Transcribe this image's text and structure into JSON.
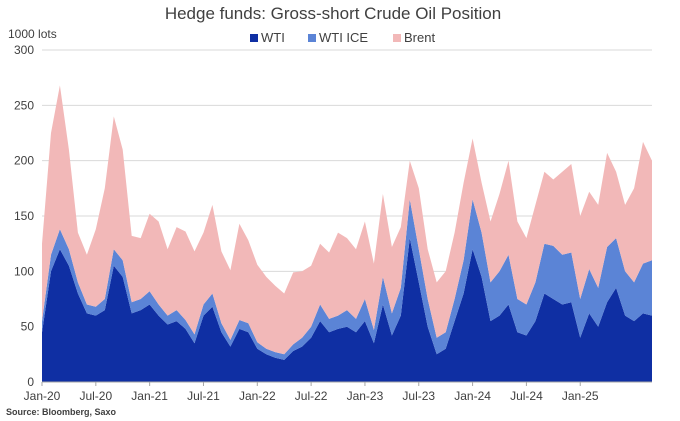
{
  "chart_data": {
    "type": "area",
    "stacked": true,
    "title": "Hedge funds: Gross-short Crude Oil Position",
    "ylabel": "1000 lots",
    "ylim": [
      0,
      300
    ],
    "yticks": [
      0,
      50,
      100,
      150,
      200,
      250,
      300
    ],
    "x_tick_labels": [
      "Jan-20",
      "Jul-20",
      "Jan-21",
      "Jul-21",
      "Jan-22",
      "Jul-22",
      "Jan-23",
      "Jul-23",
      "Jan-24",
      "Jul-24",
      "Jan-25"
    ],
    "x_start": "2020-01",
    "x_end": "2025-09",
    "grid": true,
    "legend_position": "top-center",
    "source": "Source: Bloomberg, Saxo",
    "colors": {
      "WTI": "#0f2fa3",
      "WTI ICE": "#5b84d6",
      "Brent": "#f2b8b8"
    },
    "x": [
      "2020-01",
      "2020-02",
      "2020-03",
      "2020-04",
      "2020-05",
      "2020-06",
      "2020-07",
      "2020-08",
      "2020-09",
      "2020-10",
      "2020-11",
      "2020-12",
      "2021-01",
      "2021-02",
      "2021-03",
      "2021-04",
      "2021-05",
      "2021-06",
      "2021-07",
      "2021-08",
      "2021-09",
      "2021-10",
      "2021-11",
      "2021-12",
      "2022-01",
      "2022-02",
      "2022-03",
      "2022-04",
      "2022-05",
      "2022-06",
      "2022-07",
      "2022-08",
      "2022-09",
      "2022-10",
      "2022-11",
      "2022-12",
      "2023-01",
      "2023-02",
      "2023-03",
      "2023-04",
      "2023-05",
      "2023-06",
      "2023-07",
      "2023-08",
      "2023-09",
      "2023-10",
      "2023-11",
      "2023-12",
      "2024-01",
      "2024-02",
      "2024-03",
      "2024-04",
      "2024-05",
      "2024-06",
      "2024-07",
      "2024-08",
      "2024-09",
      "2024-10",
      "2024-11",
      "2024-12",
      "2025-01",
      "2025-02",
      "2025-03",
      "2025-04",
      "2025-05",
      "2025-06",
      "2025-07",
      "2025-08",
      "2025-09"
    ],
    "series": [
      {
        "name": "WTI",
        "values": [
          45,
          100,
          120,
          105,
          80,
          62,
          60,
          65,
          105,
          95,
          62,
          65,
          70,
          60,
          52,
          55,
          48,
          35,
          60,
          68,
          45,
          32,
          48,
          45,
          30,
          25,
          22,
          20,
          28,
          32,
          40,
          55,
          45,
          48,
          50,
          45,
          55,
          35,
          70,
          42,
          60,
          130,
          90,
          50,
          25,
          30,
          55,
          80,
          120,
          95,
          55,
          60,
          70,
          45,
          42,
          55,
          80,
          75,
          70,
          72,
          40,
          62,
          50,
          72,
          85,
          60,
          55,
          62,
          60
        ]
      },
      {
        "name": "WTI ICE",
        "values": [
          10,
          15,
          18,
          15,
          10,
          8,
          8,
          10,
          15,
          15,
          10,
          10,
          12,
          10,
          8,
          10,
          8,
          8,
          10,
          12,
          8,
          6,
          8,
          8,
          6,
          5,
          5,
          5,
          6,
          8,
          10,
          15,
          12,
          12,
          15,
          12,
          20,
          12,
          25,
          20,
          25,
          35,
          30,
          25,
          15,
          15,
          20,
          30,
          45,
          40,
          35,
          40,
          45,
          30,
          28,
          35,
          45,
          48,
          45,
          45,
          35,
          40,
          35,
          50,
          45,
          40,
          35,
          45,
          50
        ]
      },
      {
        "name": "Brent",
        "values": [
          70,
          110,
          130,
          90,
          45,
          45,
          70,
          100,
          120,
          100,
          60,
          55,
          70,
          75,
          60,
          75,
          80,
          75,
          65,
          80,
          65,
          63,
          87,
          75,
          70,
          65,
          60,
          55,
          65,
          60,
          55,
          55,
          60,
          75,
          65,
          63,
          70,
          60,
          75,
          60,
          55,
          35,
          55,
          45,
          50,
          55,
          60,
          70,
          55,
          45,
          55,
          70,
          85,
          70,
          60,
          70,
          65,
          60,
          75,
          80,
          75,
          70,
          75,
          85,
          60,
          60,
          85,
          110,
          90
        ]
      }
    ]
  }
}
